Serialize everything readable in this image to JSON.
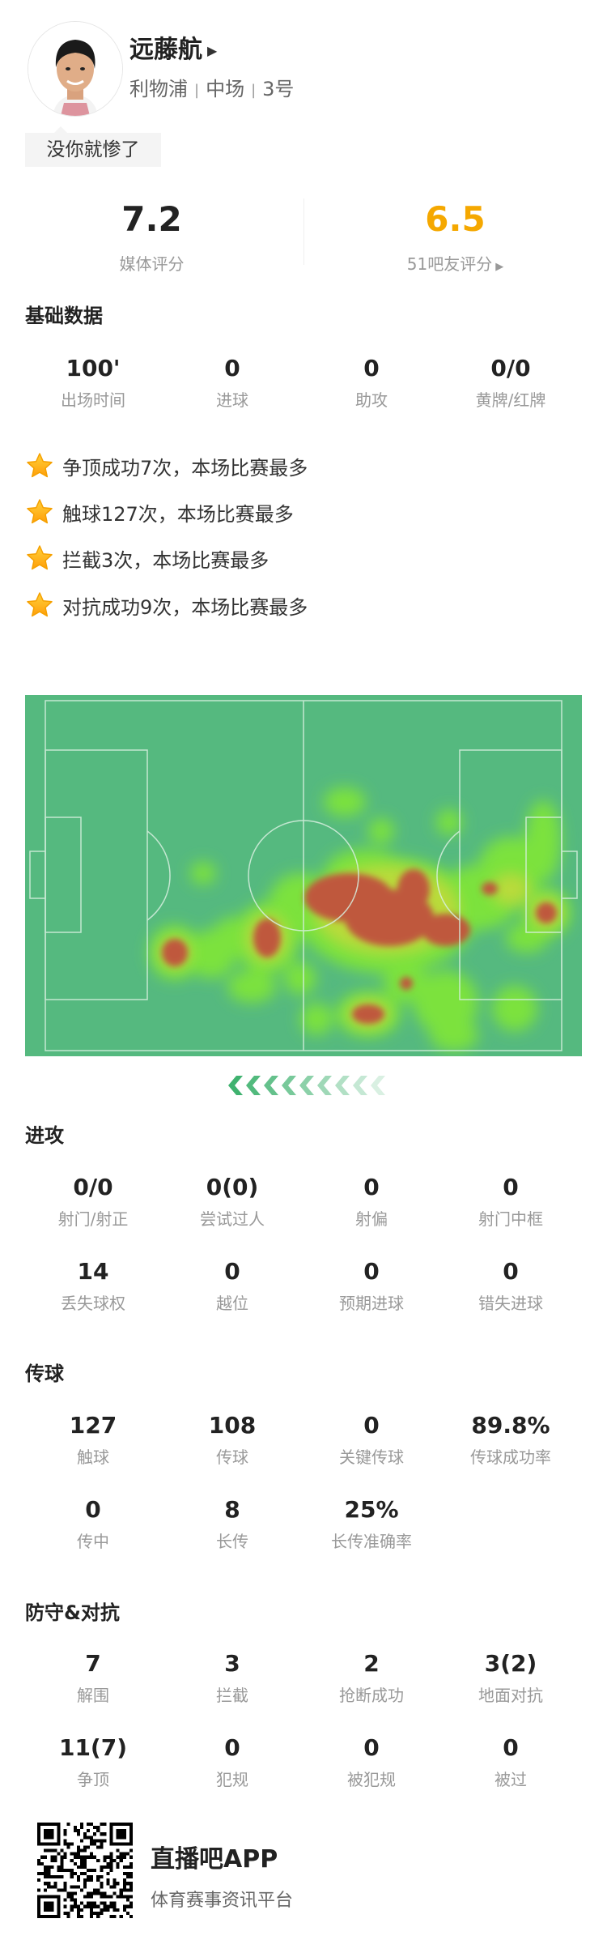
{
  "player": {
    "name": "远藤航",
    "team": "利物浦",
    "position": "中场",
    "number": "3号",
    "tag": "没你就惨了"
  },
  "ratings": {
    "media": {
      "value": "7.2",
      "label": "媒体评分"
    },
    "fans": {
      "value": "6.5",
      "label": "51吧友评分",
      "color": "#f5a800"
    }
  },
  "basic": {
    "title": "基础数据",
    "items": [
      {
        "value": "100'",
        "label": "出场时间"
      },
      {
        "value": "0",
        "label": "进球"
      },
      {
        "value": "0",
        "label": "助攻"
      },
      {
        "value": "0/0",
        "label": "黄牌/红牌"
      }
    ]
  },
  "highlights": [
    "争顶成功7次，本场比赛最多",
    "触球127次，本场比赛最多",
    "拦截3次，本场比赛最多",
    "对抗成功9次，本场比赛最多"
  ],
  "heatmap": {
    "pitch_color": "#55b97f",
    "direction": "attacking-left"
  },
  "attack": {
    "title": "进攻",
    "items": [
      {
        "value": "0/0",
        "label": "射门/射正"
      },
      {
        "value": "0(0)",
        "label": "尝试过人"
      },
      {
        "value": "0",
        "label": "射偏"
      },
      {
        "value": "0",
        "label": "射门中框"
      },
      {
        "value": "14",
        "label": "丢失球权"
      },
      {
        "value": "0",
        "label": "越位"
      },
      {
        "value": "0",
        "label": "预期进球"
      },
      {
        "value": "0",
        "label": "错失进球"
      }
    ]
  },
  "passing": {
    "title": "传球",
    "items": [
      {
        "value": "127",
        "label": "触球"
      },
      {
        "value": "108",
        "label": "传球"
      },
      {
        "value": "0",
        "label": "关键传球"
      },
      {
        "value": "89.8%",
        "label": "传球成功率"
      },
      {
        "value": "0",
        "label": "传中"
      },
      {
        "value": "8",
        "label": "长传"
      },
      {
        "value": "25%",
        "label": "长传准确率"
      }
    ]
  },
  "defense": {
    "title": "防守&对抗",
    "items": [
      {
        "value": "7",
        "label": "解围"
      },
      {
        "value": "3",
        "label": "拦截"
      },
      {
        "value": "2",
        "label": "抢断成功"
      },
      {
        "value": "3(2)",
        "label": "地面对抗"
      },
      {
        "value": "11(7)",
        "label": "争顶"
      },
      {
        "value": "0",
        "label": "犯规"
      },
      {
        "value": "0",
        "label": "被犯规"
      },
      {
        "value": "0",
        "label": "被过"
      }
    ]
  },
  "footer": {
    "app": "直播吧APP",
    "slogan": "体育赛事资讯平台"
  }
}
